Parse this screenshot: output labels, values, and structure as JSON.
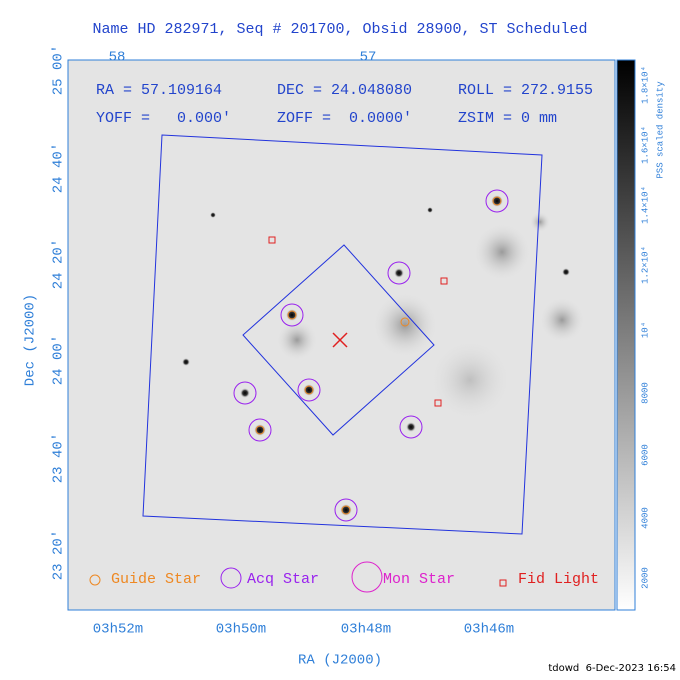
{
  "header": {
    "title": "Name HD 282971, Seq # 201700, Obsid 28900, ST Scheduled"
  },
  "top_axis": {
    "labels": [
      "58",
      "57"
    ]
  },
  "info": {
    "ra": "RA = 57.109164",
    "dec": "DEC = 24.048080",
    "roll": "ROLL = 272.9155",
    "yoff": "YOFF =   0.000'",
    "zoff": "ZOFF =  0.0000'",
    "zsim": "ZSIM = 0 mm"
  },
  "y_axis": {
    "title": "Dec (J2000)",
    "labels": [
      "25 00'",
      "24 40'",
      "24 20'",
      "24 00'",
      "23 40'",
      "23 20'"
    ]
  },
  "x_axis": {
    "title": "RA (J2000)",
    "labels": [
      "03h52m",
      "03h50m",
      "03h48m",
      "03h46m"
    ]
  },
  "legend": {
    "guide": "Guide Star",
    "acq": "Acq Star",
    "mon": "Mon Star",
    "fid": "Fid Light"
  },
  "colorbar": {
    "title": "PSS scaled density",
    "labels": [
      "2000",
      "4000",
      "6000",
      "8000",
      "10⁴",
      "1.2×10⁴",
      "1.4×10⁴",
      "1.6×10⁴",
      "1.8×10⁴"
    ]
  },
  "footer": {
    "stamp": "tdowd  6-Dec-2023 16:54"
  }
}
